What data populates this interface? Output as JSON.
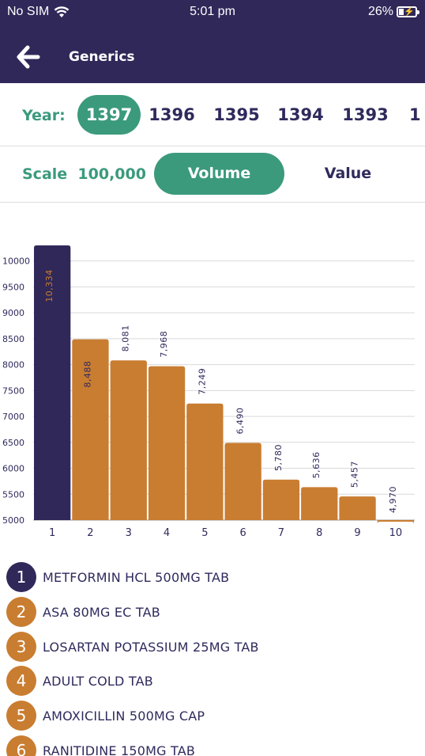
{
  "status_bar": {
    "carrier": "No SIM",
    "time": "5:01 pm",
    "battery": "26%"
  },
  "nav": {
    "title": "Generics"
  },
  "years": {
    "label": "Year:",
    "items": [
      "1397",
      "1396",
      "1395",
      "1394",
      "1393",
      "1"
    ],
    "selected": "1397"
  },
  "scale": {
    "label": "Scale",
    "value": "100,000",
    "volume_label": "Volume",
    "value_label": "Value",
    "selected": "Volume"
  },
  "colors": {
    "header": "#302859",
    "accent": "#3b9a7c",
    "bar_highlight": "#302859",
    "bar": "#c97d31",
    "text": "#2f2a5c"
  },
  "chart_data": {
    "type": "bar",
    "categories": [
      "1",
      "2",
      "3",
      "4",
      "5",
      "6",
      "7",
      "8",
      "9",
      "10"
    ],
    "values": [
      10334,
      8488,
      8081,
      7968,
      7249,
      6490,
      5780,
      5636,
      5457,
      4970
    ],
    "value_labels": [
      "10,334",
      "8,488",
      "8,081",
      "7,968",
      "7,249",
      "6,490",
      "5,780",
      "5,636",
      "5,457",
      "4,970"
    ],
    "ylim": [
      5000,
      10300
    ],
    "yticks": [
      5000,
      5500,
      6000,
      6500,
      7000,
      7500,
      8000,
      8500,
      9000,
      9500,
      10000
    ],
    "grid": true,
    "highlighted_index": 0
  },
  "legend": [
    {
      "num": "1",
      "name": "METFORMIN HCL 500MG TAB"
    },
    {
      "num": "2",
      "name": "ASA 80MG EC TAB"
    },
    {
      "num": "3",
      "name": "LOSARTAN POTASSIUM 25MG TAB"
    },
    {
      "num": "4",
      "name": "ADULT COLD TAB"
    },
    {
      "num": "5",
      "name": "AMOXICILLIN 500MG CAP"
    },
    {
      "num": "6",
      "name": "RANITIDINE 150MG TAB"
    }
  ]
}
